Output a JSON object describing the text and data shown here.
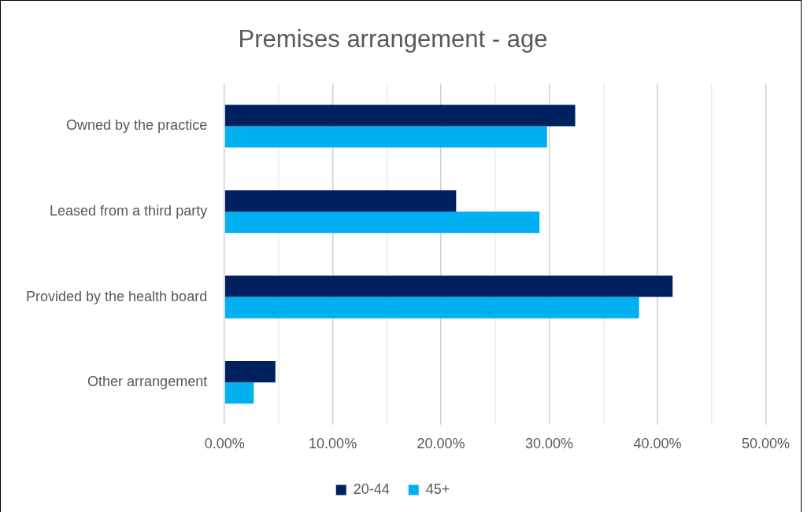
{
  "chart_data": {
    "type": "bar",
    "orientation": "horizontal",
    "title": "Premises arrangement - age",
    "categories": [
      "Owned by the practice",
      "Leased from a third party",
      "Provided by the health board",
      "Other arrangement"
    ],
    "series": [
      {
        "name": "20-44",
        "color": "#002060",
        "values": [
          32.4,
          21.4,
          41.4,
          4.7
        ]
      },
      {
        "name": "45+",
        "color": "#00b0f0",
        "values": [
          29.8,
          29.1,
          38.3,
          2.7
        ]
      }
    ],
    "xlim": [
      0,
      50
    ],
    "xticks": [
      {
        "value": 0,
        "label": "0.00%"
      },
      {
        "value": 5,
        "label": null
      },
      {
        "value": 10,
        "label": "10.00%"
      },
      {
        "value": 15,
        "label": null
      },
      {
        "value": 20,
        "label": "20.00%"
      },
      {
        "value": 25,
        "label": null
      },
      {
        "value": 30,
        "label": "30.00%"
      },
      {
        "value": 35,
        "label": null
      },
      {
        "value": 40,
        "label": "40.00%"
      },
      {
        "value": 45,
        "label": null
      },
      {
        "value": 50,
        "label": "50.00%"
      }
    ],
    "grid": "x",
    "legend": "bottom"
  }
}
